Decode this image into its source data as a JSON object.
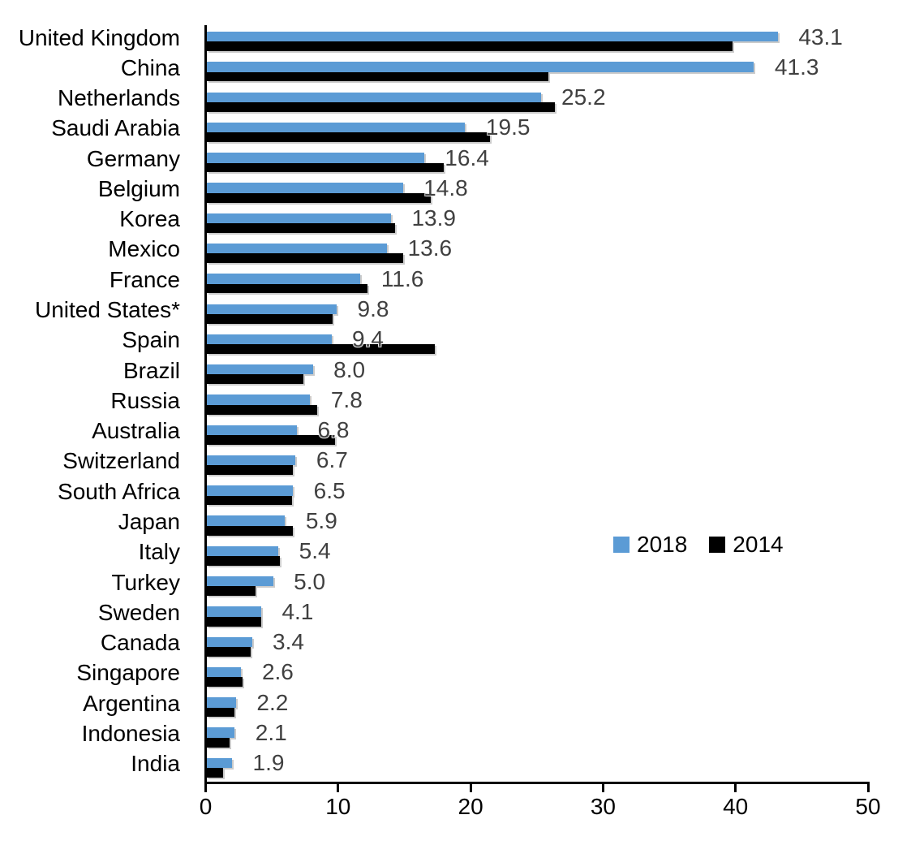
{
  "chart_data": {
    "type": "bar",
    "orientation": "horizontal",
    "title": "",
    "categories": [
      "United Kingdom",
      "China",
      "Netherlands",
      "Saudi Arabia",
      "Germany",
      "Belgium",
      "Korea",
      "Mexico",
      "France",
      "United States*",
      "Spain",
      "Brazil",
      "Russia",
      "Australia",
      "Switzerland",
      "South Africa",
      "Japan",
      "Italy",
      "Turkey",
      "Sweden",
      "Canada",
      "Singapore",
      "Argentina",
      "Indonesia",
      "India"
    ],
    "series": [
      {
        "name": "2018",
        "color": "#5B9BD5",
        "values": [
          43.1,
          41.3,
          25.2,
          19.5,
          16.4,
          14.8,
          13.9,
          13.6,
          11.6,
          9.8,
          9.4,
          8.0,
          7.8,
          6.8,
          6.7,
          6.5,
          5.9,
          5.4,
          5.0,
          4.1,
          3.4,
          2.6,
          2.2,
          2.1,
          1.9
        ]
      },
      {
        "name": "2014",
        "color": "#000000",
        "estimated": true,
        "values": [
          39.7,
          25.8,
          26.3,
          21.4,
          17.9,
          16.9,
          14.2,
          14.8,
          12.1,
          9.5,
          17.2,
          7.3,
          8.3,
          9.7,
          6.5,
          6.4,
          6.5,
          5.5,
          3.7,
          4.1,
          3.3,
          2.7,
          2.1,
          1.7,
          1.2
        ]
      }
    ],
    "value_labels": [
      "43.1",
      "41.3",
      "25.2",
      "19.5",
      "16.4",
      "14.8",
      "13.9",
      "13.6",
      "11.6",
      "9.8",
      "9.4",
      "8.0",
      "7.8",
      "6.8",
      "6.7",
      "6.5",
      "5.9",
      "5.4",
      "5.0",
      "4.1",
      "3.4",
      "2.6",
      "2.2",
      "2.1",
      "1.9"
    ],
    "xlim": [
      0,
      50
    ],
    "x_ticks": [
      "0",
      "10",
      "20",
      "30",
      "40",
      "50"
    ],
    "grid": false,
    "legend": {
      "position": "center-right",
      "entries": [
        "2018",
        "2014"
      ]
    },
    "colors": {
      "bar_2018": "#5B9BD5",
      "bar_2014": "#000000",
      "value_label": "#404040",
      "axis": "#000000",
      "background": "#FFFFFF"
    }
  }
}
